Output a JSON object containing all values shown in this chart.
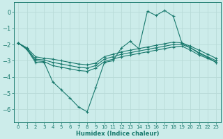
{
  "xlabel": "Humidex (Indice chaleur)",
  "bg_color": "#ccecea",
  "grid_color": "#b8dbd8",
  "line_color": "#1a7a6e",
  "xlim": [
    -0.5,
    23.5
  ],
  "ylim": [
    -6.8,
    0.6
  ],
  "yticks": [
    0,
    -1,
    -2,
    -3,
    -4,
    -5,
    -6
  ],
  "xticks": [
    0,
    1,
    2,
    3,
    4,
    5,
    6,
    7,
    8,
    9,
    10,
    11,
    12,
    13,
    14,
    15,
    16,
    17,
    18,
    19,
    20,
    21,
    22,
    23
  ],
  "line1_x": [
    0,
    1,
    2,
    3,
    4,
    5,
    6,
    7,
    8,
    9,
    10,
    11,
    12,
    13,
    14,
    15,
    16,
    17,
    18,
    19,
    20,
    21,
    22,
    23
  ],
  "line1_y": [
    -1.9,
    -2.3,
    -3.1,
    -3.1,
    -4.3,
    -4.8,
    -5.3,
    -5.85,
    -6.15,
    -4.65,
    -3.1,
    -3.0,
    -2.2,
    -1.8,
    -2.25,
    0.05,
    -0.2,
    0.1,
    -0.25,
    -1.9,
    -2.2,
    -2.55,
    -2.8,
    -3.1
  ],
  "line2_x": [
    0,
    1,
    2,
    3,
    4,
    5,
    6,
    7,
    8,
    9,
    10,
    11,
    12,
    13,
    14,
    15,
    16,
    17,
    18,
    19,
    20,
    21,
    22,
    23
  ],
  "line2_y": [
    -1.9,
    -2.3,
    -3.0,
    -3.05,
    -3.3,
    -3.4,
    -3.5,
    -3.6,
    -3.65,
    -3.45,
    -3.05,
    -2.9,
    -2.75,
    -2.65,
    -2.55,
    -2.45,
    -2.35,
    -2.25,
    -2.15,
    -2.1,
    -2.35,
    -2.65,
    -2.85,
    -3.1
  ],
  "line3_x": [
    0,
    1,
    2,
    3,
    4,
    5,
    6,
    7,
    8,
    9,
    10,
    11,
    12,
    13,
    14,
    15,
    16,
    17,
    18,
    19,
    20,
    21,
    22,
    23
  ],
  "line3_y": [
    -1.9,
    -2.25,
    -2.9,
    -2.95,
    -3.1,
    -3.2,
    -3.3,
    -3.4,
    -3.45,
    -3.3,
    -2.9,
    -2.75,
    -2.6,
    -2.5,
    -2.4,
    -2.3,
    -2.2,
    -2.1,
    -2.0,
    -2.0,
    -2.2,
    -2.5,
    -2.75,
    -3.0
  ],
  "line4_x": [
    0,
    1,
    2,
    3,
    4,
    5,
    6,
    7,
    8,
    9,
    10,
    11,
    12,
    13,
    14,
    15,
    16,
    17,
    18,
    19,
    20,
    21,
    22,
    23
  ],
  "line4_y": [
    -1.9,
    -2.2,
    -2.75,
    -2.85,
    -2.9,
    -3.0,
    -3.1,
    -3.2,
    -3.25,
    -3.15,
    -2.75,
    -2.6,
    -2.45,
    -2.35,
    -2.25,
    -2.15,
    -2.05,
    -1.95,
    -1.85,
    -1.9,
    -2.1,
    -2.35,
    -2.6,
    -2.85
  ]
}
